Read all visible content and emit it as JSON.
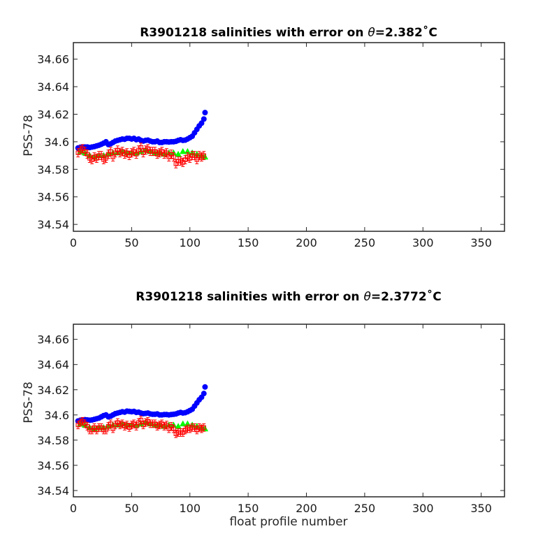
{
  "chart_data": [
    {
      "type": "scatter",
      "title": "R3901218 salinities with error on θ=2.382˚C",
      "title_parts": {
        "prefix": "R3901218 salinities with error on ",
        "theta": "θ",
        "value": "=2.382",
        "unit": "˚C"
      },
      "xlabel": "",
      "ylabel": "PSS-78",
      "xlim": [
        0,
        370
      ],
      "ylim": [
        34.535,
        34.672
      ],
      "xticks": [
        0,
        50,
        100,
        150,
        200,
        250,
        300,
        350
      ],
      "yticks": [
        34.54,
        34.56,
        34.58,
        34.6,
        34.62,
        34.64,
        34.66
      ],
      "ytick_labels": [
        "34.54",
        "34.56",
        "34.58",
        "34.6",
        "34.62",
        "34.64",
        "34.66"
      ],
      "grid": false,
      "series": [
        {
          "color": "#0000ff",
          "marker": "circle",
          "x": [
            4,
            6,
            8,
            10,
            12,
            14,
            16,
            18,
            20,
            22,
            24,
            26,
            28,
            30,
            32,
            34,
            36,
            38,
            40,
            42,
            44,
            46,
            48,
            50,
            52,
            54,
            56,
            58,
            60,
            62,
            64,
            66,
            68,
            70,
            72,
            74,
            76,
            78,
            80,
            82,
            84,
            86,
            88,
            90,
            92,
            94,
            96,
            98,
            100,
            102,
            104,
            106,
            108,
            110,
            112,
            113
          ],
          "y": [
            34.5955,
            34.596,
            34.5962,
            34.5962,
            34.5962,
            34.5958,
            34.5962,
            34.5965,
            34.597,
            34.5975,
            34.5982,
            34.599,
            34.6,
            34.598,
            34.5985,
            34.5995,
            34.6005,
            34.601,
            34.6015,
            34.602,
            34.6018,
            34.6025,
            34.6025,
            34.602,
            34.6025,
            34.6015,
            34.602,
            34.601,
            34.6005,
            34.601,
            34.6012,
            34.6005,
            34.6,
            34.6,
            34.6005,
            34.5995,
            34.5995,
            34.6,
            34.6,
            34.5998,
            34.6,
            34.6,
            34.6003,
            34.601,
            34.6015,
            34.601,
            34.6012,
            34.602,
            34.603,
            34.604,
            34.6065,
            34.609,
            34.6115,
            34.6135,
            34.6165,
            34.6212
          ]
        },
        {
          "color": "#00ff00",
          "marker": "triangle",
          "x": [
            6,
            10,
            14,
            18,
            22,
            26,
            30,
            34,
            38,
            42,
            46,
            50,
            54,
            58,
            62,
            66,
            70,
            74,
            78,
            82,
            86,
            90,
            94,
            98,
            102,
            106,
            110,
            113
          ],
          "y": [
            34.593,
            34.592,
            34.59,
            34.589,
            34.59,
            34.59,
            34.591,
            34.592,
            34.592,
            34.593,
            34.592,
            34.592,
            34.592,
            34.593,
            34.594,
            34.593,
            34.592,
            34.592,
            34.591,
            34.592,
            34.592,
            34.591,
            34.593,
            34.593,
            34.592,
            34.591,
            34.59,
            34.589
          ]
        },
        {
          "color": "#ff0000",
          "marker": "square-errorbar",
          "error": 0.003,
          "x": [
            4,
            6,
            8,
            10,
            12,
            14,
            16,
            18,
            20,
            22,
            24,
            26,
            28,
            30,
            32,
            34,
            36,
            38,
            40,
            42,
            44,
            46,
            48,
            50,
            52,
            54,
            56,
            58,
            60,
            62,
            64,
            66,
            68,
            70,
            72,
            74,
            76,
            78,
            80,
            82,
            84,
            86,
            88,
            90,
            92,
            94,
            96,
            98,
            100,
            102,
            104,
            106,
            108,
            110,
            112
          ],
          "y": [
            34.592,
            34.594,
            34.595,
            34.593,
            34.591,
            34.588,
            34.587,
            34.589,
            34.588,
            34.59,
            34.59,
            34.587,
            34.588,
            34.591,
            34.593,
            34.589,
            34.592,
            34.594,
            34.592,
            34.593,
            34.591,
            34.592,
            34.59,
            34.592,
            34.593,
            34.591,
            34.594,
            34.596,
            34.592,
            34.594,
            34.595,
            34.593,
            34.593,
            34.593,
            34.591,
            34.592,
            34.593,
            34.591,
            34.592,
            34.589,
            34.591,
            34.589,
            34.584,
            34.586,
            34.586,
            34.585,
            34.587,
            34.589,
            34.588,
            34.59,
            34.59,
            34.587,
            34.59,
            34.589,
            34.59
          ]
        }
      ]
    },
    {
      "type": "scatter",
      "title": "R3901218 salinities with error on θ=2.3772˚C",
      "title_parts": {
        "prefix": "R3901218 salinities with error on ",
        "theta": "θ",
        "value": "=2.3772",
        "unit": "˚C"
      },
      "xlabel": "float profile number",
      "ylabel": "PSS-78",
      "xlim": [
        0,
        370
      ],
      "ylim": [
        34.535,
        34.672
      ],
      "xticks": [
        0,
        50,
        100,
        150,
        200,
        250,
        300,
        350
      ],
      "yticks": [
        34.54,
        34.56,
        34.58,
        34.6,
        34.62,
        34.64,
        34.66
      ],
      "ytick_labels": [
        "34.54",
        "34.56",
        "34.58",
        "34.6",
        "34.62",
        "34.64",
        "34.66"
      ],
      "grid": false,
      "series": [
        {
          "color": "#0000ff",
          "marker": "circle",
          "x": [
            4,
            6,
            8,
            10,
            12,
            14,
            16,
            18,
            20,
            22,
            24,
            26,
            28,
            30,
            32,
            34,
            36,
            38,
            40,
            42,
            44,
            46,
            48,
            50,
            52,
            54,
            56,
            58,
            60,
            62,
            64,
            66,
            68,
            70,
            72,
            74,
            76,
            78,
            80,
            82,
            84,
            86,
            88,
            90,
            92,
            94,
            96,
            98,
            100,
            102,
            104,
            106,
            108,
            110,
            112,
            113
          ],
          "y": [
            34.5952,
            34.5958,
            34.596,
            34.5962,
            34.596,
            34.5958,
            34.596,
            34.5965,
            34.597,
            34.5975,
            34.5985,
            34.5995,
            34.6,
            34.5985,
            34.599,
            34.6,
            34.601,
            34.6015,
            34.602,
            34.6025,
            34.6022,
            34.603,
            34.6028,
            34.6025,
            34.6028,
            34.602,
            34.6022,
            34.6015,
            34.601,
            34.6012,
            34.6015,
            34.6008,
            34.6005,
            34.6005,
            34.6008,
            34.6,
            34.6,
            34.6003,
            34.6003,
            34.6,
            34.6003,
            34.6005,
            34.6008,
            34.6015,
            34.602,
            34.6015,
            34.6018,
            34.6025,
            34.6035,
            34.6045,
            34.607,
            34.6095,
            34.612,
            34.614,
            34.617,
            34.6222
          ]
        },
        {
          "color": "#00ff00",
          "marker": "triangle",
          "x": [
            6,
            10,
            14,
            18,
            22,
            26,
            30,
            34,
            38,
            42,
            46,
            50,
            54,
            58,
            62,
            66,
            70,
            74,
            78,
            82,
            86,
            90,
            94,
            98,
            102,
            106,
            110,
            113
          ],
          "y": [
            34.593,
            34.592,
            34.59,
            34.589,
            34.59,
            34.59,
            34.591,
            34.592,
            34.592,
            34.593,
            34.592,
            34.592,
            34.592,
            34.593,
            34.594,
            34.593,
            34.592,
            34.592,
            34.591,
            34.592,
            34.592,
            34.591,
            34.593,
            34.593,
            34.592,
            34.591,
            34.59,
            34.589
          ]
        },
        {
          "color": "#ff0000",
          "marker": "square-errorbar",
          "error": 0.003,
          "x": [
            4,
            6,
            8,
            10,
            12,
            14,
            16,
            18,
            20,
            22,
            24,
            26,
            28,
            30,
            32,
            34,
            36,
            38,
            40,
            42,
            44,
            46,
            48,
            50,
            52,
            54,
            56,
            58,
            60,
            62,
            64,
            66,
            68,
            70,
            72,
            74,
            76,
            78,
            80,
            82,
            84,
            86,
            88,
            90,
            92,
            94,
            96,
            98,
            100,
            102,
            104,
            106,
            108,
            110,
            112
          ],
          "y": [
            34.592,
            34.594,
            34.595,
            34.593,
            34.591,
            34.588,
            34.588,
            34.59,
            34.588,
            34.59,
            34.59,
            34.588,
            34.588,
            34.591,
            34.593,
            34.589,
            34.592,
            34.594,
            34.592,
            34.593,
            34.591,
            34.592,
            34.59,
            34.592,
            34.593,
            34.591,
            34.594,
            34.596,
            34.592,
            34.594,
            34.595,
            34.593,
            34.593,
            34.593,
            34.591,
            34.592,
            34.593,
            34.591,
            34.592,
            34.589,
            34.591,
            34.589,
            34.585,
            34.586,
            34.586,
            34.586,
            34.588,
            34.589,
            34.589,
            34.59,
            34.59,
            34.588,
            34.59,
            34.589,
            34.59
          ]
        }
      ]
    }
  ]
}
